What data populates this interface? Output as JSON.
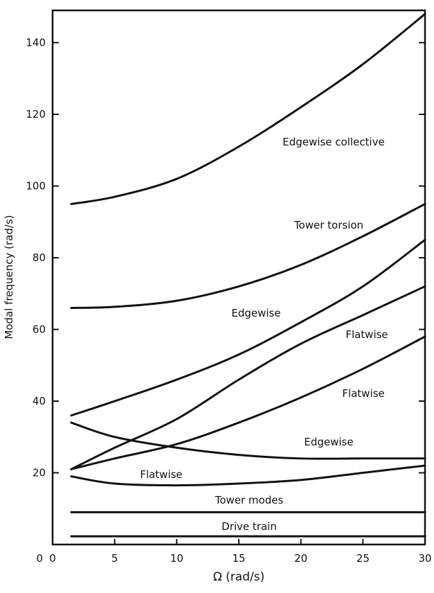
{
  "chart_data": {
    "type": "line",
    "title": "",
    "xlabel": "Ω (rad/s)",
    "ylabel": "Modal frequency (rad/s)",
    "xlim": [
      0,
      30
    ],
    "ylim": [
      0,
      149
    ],
    "xticks": [
      0,
      5,
      10,
      15,
      20,
      25,
      30
    ],
    "yticks": [
      0,
      20,
      40,
      60,
      80,
      100,
      120,
      140
    ],
    "grid": false,
    "line_color": "#111111",
    "x": [
      1.5,
      5,
      10,
      15,
      20,
      25,
      30
    ],
    "series": [
      {
        "name": "Edgewise collective",
        "values": [
          95,
          97,
          102,
          111,
          122,
          134,
          148
        ]
      },
      {
        "name": "Tower torsion",
        "values": [
          66,
          66.3,
          68,
          72,
          78,
          86,
          95
        ]
      },
      {
        "name": "Edgewise",
        "values": [
          36,
          40,
          46,
          53,
          62,
          72,
          85
        ]
      },
      {
        "name": "Flatwise",
        "values": [
          21,
          27,
          35,
          46,
          56,
          64,
          72
        ]
      },
      {
        "name": "Flatwise",
        "values": [
          21,
          24,
          28,
          34,
          41,
          49,
          58
        ]
      },
      {
        "name": "Edgewise",
        "values": [
          34,
          30,
          27,
          25,
          24,
          24,
          24
        ]
      },
      {
        "name": "Flatwise",
        "values": [
          19,
          17,
          16.5,
          17,
          18,
          20,
          22
        ]
      },
      {
        "name": "Tower modes",
        "values": [
          9,
          9,
          9,
          9,
          9,
          9,
          9
        ]
      },
      {
        "name": "Drive train",
        "values": [
          2.3,
          2.3,
          2.3,
          2.3,
          2.3,
          2.3,
          2.3
        ]
      }
    ]
  }
}
